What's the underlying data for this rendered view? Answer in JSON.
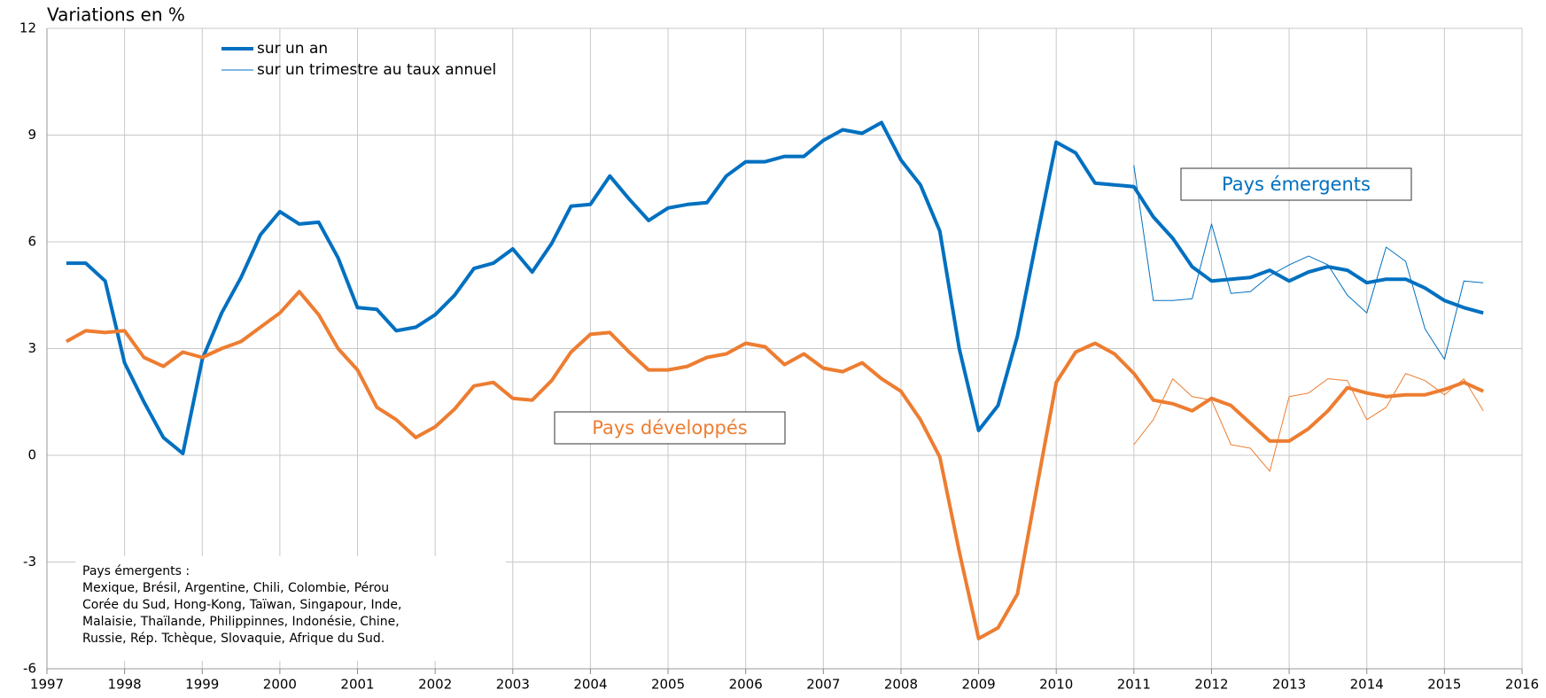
{
  "chart_data": {
    "type": "line",
    "ylabel": "Variations en %",
    "xlim": [
      1997,
      2016
    ],
    "xticks": [
      1997,
      1998,
      1999,
      2000,
      2001,
      2002,
      2003,
      2004,
      2005,
      2006,
      2007,
      2008,
      2009,
      2010,
      2011,
      2012,
      2013,
      2014,
      2015,
      2016
    ],
    "ylim": [
      -6,
      12
    ],
    "yticks": [
      -6,
      -3,
      0,
      3,
      6,
      9,
      12
    ],
    "grid": true,
    "legend": [
      {
        "name": "sur un an",
        "color": "#0070c0",
        "width": 4
      },
      {
        "name": "sur un trimestre au taux annuel",
        "color": "#0070c0",
        "width": 1
      }
    ],
    "series": [
      {
        "color": "#0070c0",
        "width": 4,
        "x": [
          1997.25,
          1997.5,
          1997.75,
          1998,
          1998.25,
          1998.5,
          1998.75,
          1999,
          1999.25,
          1999.5,
          1999.75,
          2000,
          2000.25,
          2000.5,
          2000.75,
          2001,
          2001.25,
          2001.5,
          2001.75,
          2002,
          2002.25,
          2002.5,
          2002.75,
          2003,
          2003.25,
          2003.5,
          2003.75,
          2004,
          2004.25,
          2004.5,
          2004.75,
          2005,
          2005.25,
          2005.5,
          2005.75,
          2006,
          2006.25,
          2006.5,
          2006.75,
          2007,
          2007.25,
          2007.5,
          2007.75,
          2008,
          2008.25,
          2008.5,
          2008.75,
          2009,
          2009.25,
          2009.5,
          2009.75,
          2010,
          2010.25,
          2010.5,
          2010.75,
          2011,
          2011.25,
          2011.5,
          2011.75,
          2012,
          2012.25,
          2012.5,
          2012.75,
          2013,
          2013.25,
          2013.5,
          2013.75,
          2014,
          2014.25,
          2014.5,
          2014.75,
          2015,
          2015.25,
          2015.5
        ],
        "values": [
          5.4,
          5.4,
          4.9,
          2.6,
          1.5,
          0.5,
          0.05,
          2.7,
          4.0,
          5.0,
          6.2,
          6.85,
          6.5,
          6.55,
          5.55,
          4.15,
          4.1,
          3.5,
          3.6,
          3.95,
          4.5,
          5.25,
          5.4,
          5.8,
          5.15,
          5.95,
          7.0,
          7.05,
          7.85,
          7.2,
          6.6,
          6.95,
          7.05,
          7.1,
          7.85,
          8.25,
          8.25,
          8.4,
          8.4,
          8.85,
          9.15,
          9.05,
          9.35,
          8.3,
          7.6,
          6.3,
          3.0,
          0.7,
          1.4,
          3.35,
          6.1,
          8.8,
          8.5,
          7.65,
          7.6,
          7.55,
          6.7,
          6.1,
          5.3,
          4.9,
          4.95,
          5.0,
          5.2,
          4.9,
          5.15,
          5.3,
          5.2,
          4.85,
          4.95,
          4.95,
          4.7,
          4.35,
          4.15,
          4.0
        ]
      },
      {
        "color": "#0070c0",
        "width": 1,
        "x": [
          2011,
          2011.25,
          2011.5,
          2011.75,
          2012,
          2012.25,
          2012.5,
          2012.75,
          2013,
          2013.25,
          2013.5,
          2013.75,
          2014,
          2014.25,
          2014.5,
          2014.75,
          2015,
          2015.25,
          2015.5
        ],
        "values": [
          8.15,
          4.35,
          4.35,
          4.4,
          6.5,
          4.55,
          4.6,
          5.05,
          5.35,
          5.6,
          5.35,
          4.5,
          4.0,
          5.85,
          5.45,
          3.55,
          2.7,
          4.9,
          4.85
        ]
      },
      {
        "color": "#ed7d31",
        "width": 4,
        "x": [
          1997.25,
          1997.5,
          1997.75,
          1998,
          1998.25,
          1998.5,
          1998.75,
          1999,
          1999.25,
          1999.5,
          1999.75,
          2000,
          2000.25,
          2000.5,
          2000.75,
          2001,
          2001.25,
          2001.5,
          2001.75,
          2002,
          2002.25,
          2002.5,
          2002.75,
          2003,
          2003.25,
          2003.5,
          2003.75,
          2004,
          2004.25,
          2004.5,
          2004.75,
          2005,
          2005.25,
          2005.5,
          2005.75,
          2006,
          2006.25,
          2006.5,
          2006.75,
          2007,
          2007.25,
          2007.5,
          2007.75,
          2008,
          2008.25,
          2008.5,
          2008.75,
          2009,
          2009.25,
          2009.5,
          2009.75,
          2010,
          2010.25,
          2010.5,
          2010.75,
          2011,
          2011.25,
          2011.5,
          2011.75,
          2012,
          2012.25,
          2012.5,
          2012.75,
          2013,
          2013.25,
          2013.5,
          2013.75,
          2014,
          2014.25,
          2014.5,
          2014.75,
          2015,
          2015.25,
          2015.5
        ],
        "values": [
          3.2,
          3.5,
          3.45,
          3.5,
          2.75,
          2.5,
          2.9,
          2.75,
          3.0,
          3.2,
          3.6,
          4.0,
          4.6,
          3.95,
          3.0,
          2.4,
          1.35,
          1.0,
          0.5,
          0.8,
          1.3,
          1.95,
          2.05,
          1.6,
          1.55,
          2.1,
          2.9,
          3.4,
          3.45,
          2.9,
          2.4,
          2.4,
          2.5,
          2.75,
          2.85,
          3.15,
          3.05,
          2.55,
          2.85,
          2.45,
          2.35,
          2.6,
          2.15,
          1.8,
          1.0,
          -0.05,
          -2.7,
          -5.15,
          -4.85,
          -3.9,
          -0.9,
          2.05,
          2.9,
          3.15,
          2.85,
          2.3,
          1.55,
          1.45,
          1.25,
          1.6,
          1.4,
          0.9,
          0.4,
          0.4,
          0.75,
          1.25,
          1.9,
          1.75,
          1.65,
          1.7,
          1.7,
          1.85,
          2.05,
          1.8
        ]
      },
      {
        "color": "#ed7d31",
        "width": 1,
        "x": [
          2011,
          2011.25,
          2011.5,
          2011.75,
          2012,
          2012.25,
          2012.5,
          2012.75,
          2013,
          2013.25,
          2013.5,
          2013.75,
          2014,
          2014.25,
          2014.5,
          2014.75,
          2015,
          2015.25,
          2015.5
        ],
        "values": [
          0.3,
          1.0,
          2.15,
          1.65,
          1.55,
          0.3,
          0.2,
          -0.45,
          1.65,
          1.75,
          2.15,
          2.1,
          1.0,
          1.35,
          2.3,
          2.1,
          1.7,
          2.15,
          1.25
        ]
      }
    ],
    "annotations": [
      {
        "text": "Pays émergents",
        "color": "#0070c0"
      },
      {
        "text": "Pays développés",
        "color": "#ed7d31"
      }
    ],
    "note": [
      "Pays émergents :",
      "Mexique, Brésil, Argentine, Chili, Colombie, Pérou",
      "Corée du Sud, Hong-Kong, Taïwan, Singapour, Inde,",
      "Malaisie, Thaïlande, Philippinnes, Indonésie, Chine,",
      "Russie, Rép. Tchèque, Slovaquie, Afrique du Sud."
    ]
  }
}
